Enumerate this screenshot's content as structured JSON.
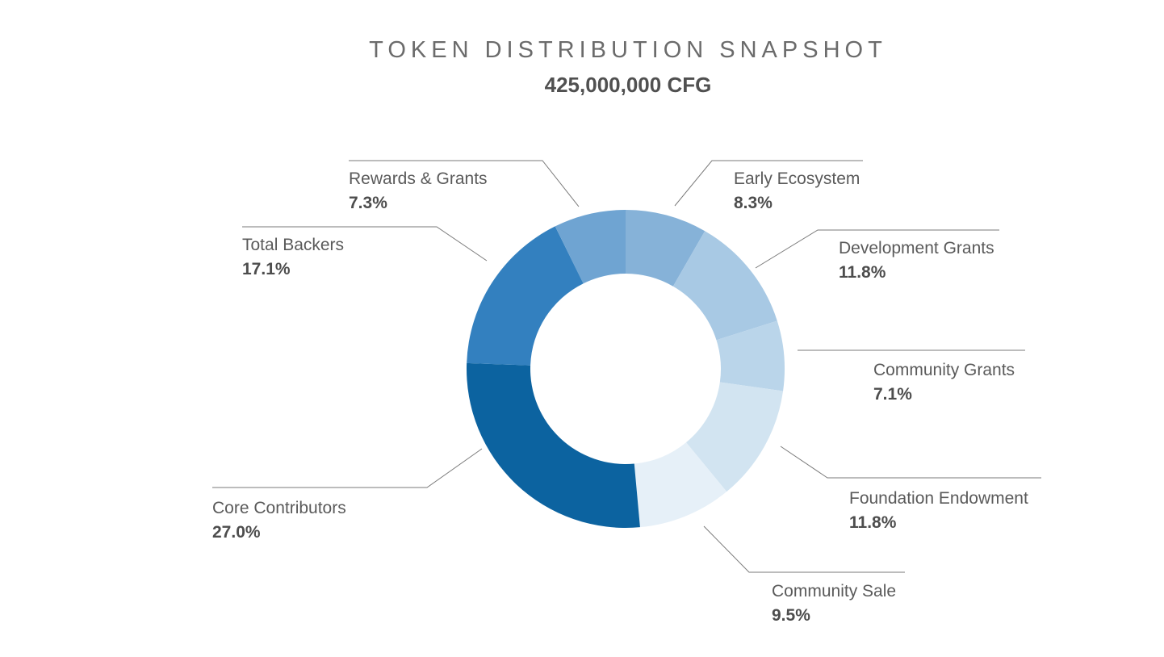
{
  "chart_data": {
    "type": "pie",
    "variant": "donut",
    "title": "TOKEN DISTRIBUTION SNAPSHOT",
    "subtitle": "425,000,000 CFG",
    "start": "top",
    "direction": "clockwise",
    "slices": [
      {
        "name": "Early Ecosystem",
        "value": 8.3,
        "label": "8.3%",
        "color": "#86b2d8"
      },
      {
        "name": "Development Grants",
        "value": 11.8,
        "label": "11.8%",
        "color": "#a8c9e4"
      },
      {
        "name": "Community Grants",
        "value": 7.1,
        "label": "7.1%",
        "color": "#bad5ea"
      },
      {
        "name": "Foundation Endowment",
        "value": 11.8,
        "label": "11.8%",
        "color": "#d2e4f1"
      },
      {
        "name": "Community Sale",
        "value": 9.5,
        "label": "9.5%",
        "color": "#e6f0f8"
      },
      {
        "name": "Core Contributors",
        "value": 27.0,
        "label": "27.0%",
        "color": "#0c63a0"
      },
      {
        "name": "Total Backers",
        "value": 17.1,
        "label": "17.1%",
        "color": "#3380bf"
      },
      {
        "name": "Rewards & Grants",
        "value": 7.3,
        "label": "7.3%",
        "color": "#6fa4d2"
      }
    ]
  }
}
